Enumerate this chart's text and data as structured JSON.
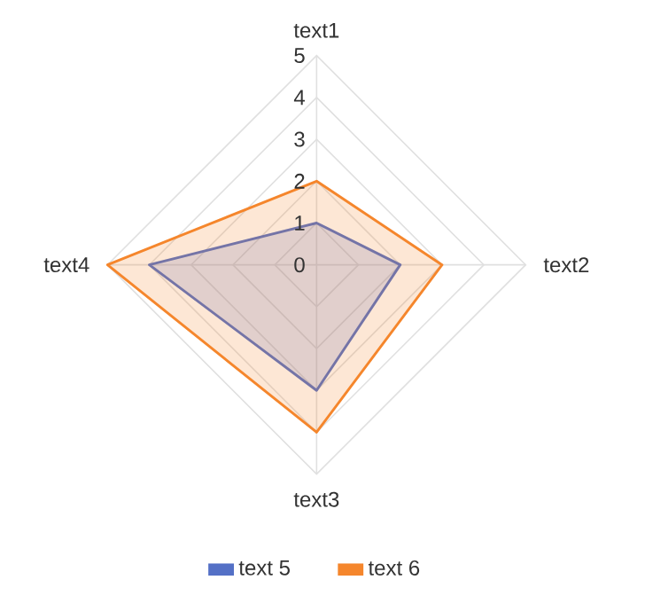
{
  "chart_data": {
    "type": "radar",
    "categories": [
      "text1",
      "text2",
      "text3",
      "text4"
    ],
    "series": [
      {
        "name": "text 5",
        "color": "#5470c6",
        "values": [
          1,
          2,
          3,
          4
        ]
      },
      {
        "name": "text 6",
        "color": "#f5862c",
        "values": [
          2,
          3,
          4,
          5
        ]
      }
    ],
    "ylim": [
      0,
      5
    ],
    "yticks": [
      0,
      1,
      2,
      3,
      4,
      5
    ],
    "grid": true,
    "legend": "bottom"
  }
}
